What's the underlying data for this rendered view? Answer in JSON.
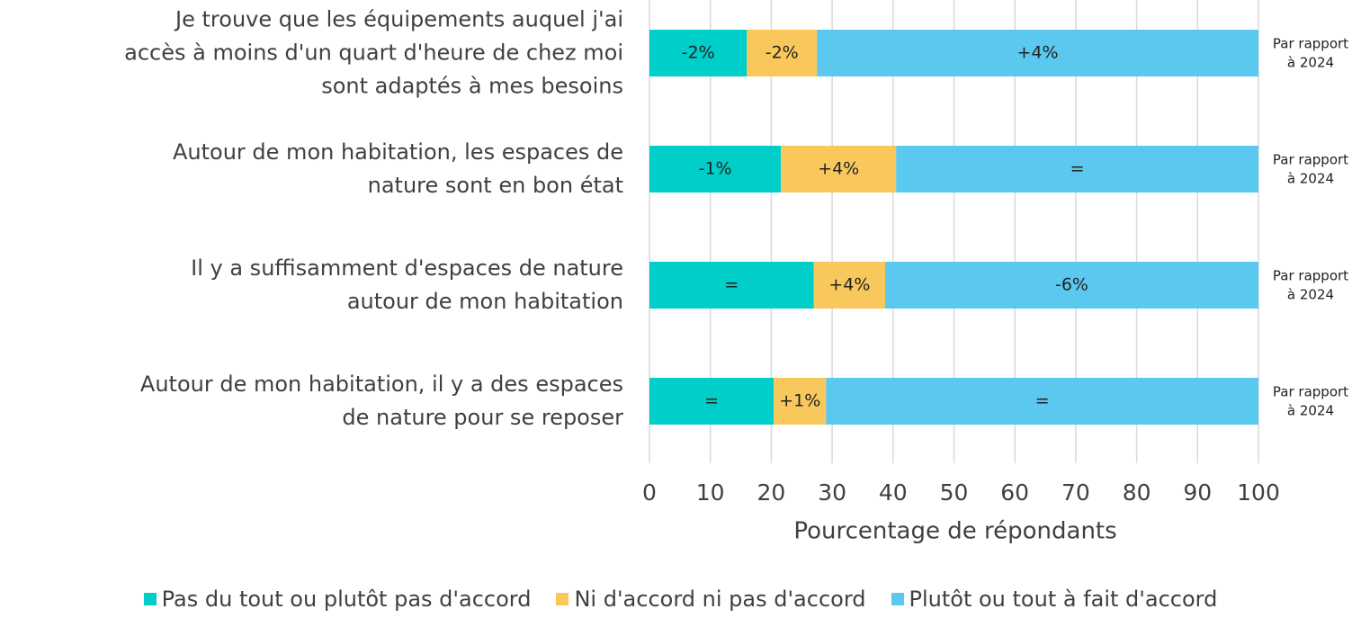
{
  "chart_data": {
    "type": "stacked_barh",
    "categories": [
      "Je trouve que les équipements auquel j'ai\naccès à moins d'un quart d'heure de chez moi\nsont adaptés à mes besoins",
      "Autour de mon habitation, les espaces de\nnature sont en bon état",
      "Il y a suffisamment d'espaces de nature\nautour de mon habitation",
      "Autour de mon habitation, il y a des espaces\nde nature pour se reposer"
    ],
    "series": [
      {
        "name": "Pas du tout ou plutôt pas d'accord",
        "color": "#00cec8",
        "values": [
          16.0,
          21.6,
          27.0,
          20.4
        ],
        "change_labels": [
          "-2%",
          "-1%",
          "=",
          "="
        ]
      },
      {
        "name": "Ni d'accord ni pas d'accord",
        "color": "#f9c85c",
        "values": [
          11.5,
          18.9,
          11.7,
          8.6
        ],
        "change_labels": [
          "-2%",
          "+4%",
          "+4%",
          "+1%"
        ]
      },
      {
        "name": "Plutôt ou tout à fait d'accord",
        "color": "#5bc8ef",
        "values": [
          72.5,
          59.5,
          61.3,
          71.0
        ],
        "change_labels": [
          "+4%",
          "=",
          "-6%",
          "="
        ]
      }
    ],
    "annotation_lines": [
      "Par rapport",
      "à 2024"
    ],
    "xlabel": "Pourcentage de répondants",
    "xlim": [
      0,
      100
    ],
    "xticks": [
      0,
      10,
      20,
      30,
      40,
      50,
      60,
      70,
      80,
      90,
      100
    ],
    "grid": true
  }
}
